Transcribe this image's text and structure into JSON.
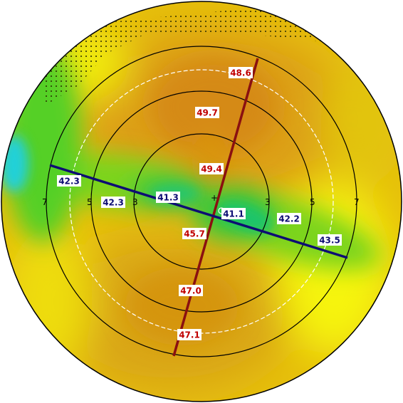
{
  "map": {
    "ring_labels": [
      "3",
      "5",
      "7"
    ],
    "center_marker": "+",
    "colors": {
      "steep_meridian": "#8a1010",
      "flat_meridian": "#0d0d73",
      "steep_label_text": "#c00000",
      "flat_label_text": "#0d0d73",
      "ring": "#000000"
    },
    "steep_meridian_labels": [
      {
        "name": "steep-label-outer-top",
        "value": "48.6"
      },
      {
        "name": "steep-label-mid-top",
        "value": "49.7"
      },
      {
        "name": "steep-label-inner-top",
        "value": "49.4"
      },
      {
        "name": "steep-label-inner-bottom",
        "value": "45.7"
      },
      {
        "name": "steep-label-mid-bottom",
        "value": "47.0"
      },
      {
        "name": "steep-label-outer-bottom",
        "value": "47.1"
      }
    ],
    "flat_meridian_labels": [
      {
        "name": "flat-label-outer-left",
        "value": "42.3"
      },
      {
        "name": "flat-label-mid-left",
        "value": "42.3"
      },
      {
        "name": "flat-label-inner-left",
        "value": "41.3"
      },
      {
        "name": "flat-label-inner-right",
        "value": "41.1"
      },
      {
        "name": "flat-label-mid-right",
        "value": "42.2"
      },
      {
        "name": "flat-label-outer-right",
        "value": "43.5"
      }
    ]
  }
}
